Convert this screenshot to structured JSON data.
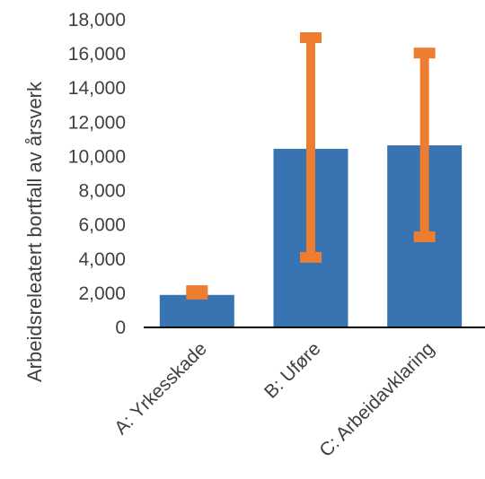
{
  "chart_data": {
    "type": "bar",
    "title": "",
    "xlabel": "",
    "ylabel": "Arbeidsreleatert bortfall av årsverk",
    "categories": [
      "A: Yrkesskade",
      "B: Uføre",
      "C: Arbeidavklaring"
    ],
    "series": [
      {
        "values": [
          1900,
          10450,
          10650
        ],
        "error_low": [
          1950,
          4100,
          5300
        ],
        "error_high": [
          2150,
          16950,
          16050
        ]
      }
    ],
    "ylim": [
      0,
      18000
    ],
    "yticks": [
      0,
      2000,
      4000,
      6000,
      8000,
      10000,
      12000,
      14000,
      16000,
      18000
    ],
    "ytick_labels": [
      "0",
      "2,000",
      "4,000",
      "6,000",
      "8,000",
      "10,000",
      "12,000",
      "14,000",
      "16,000",
      "18,000"
    ],
    "grid": false,
    "legend": "none",
    "colors": {
      "bar": "#3873b2",
      "error": "#ed7d31",
      "axis": "#000000",
      "text": "#404040"
    }
  }
}
